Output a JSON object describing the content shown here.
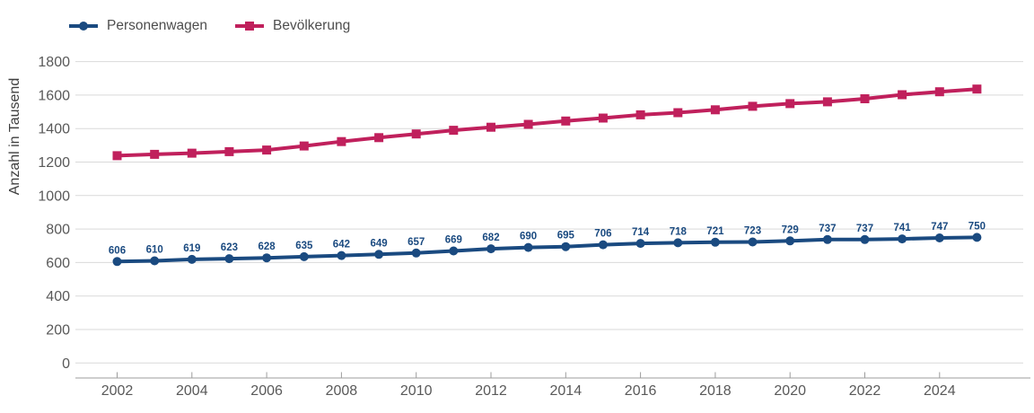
{
  "chart_data": {
    "type": "line",
    "title": "",
    "ylabel": "Anzahl in Tausend",
    "xlabel": "",
    "years": [
      2002,
      2003,
      2004,
      2005,
      2006,
      2007,
      2008,
      2009,
      2010,
      2011,
      2012,
      2013,
      2014,
      2015,
      2016,
      2017,
      2018,
      2019,
      2020,
      2021,
      2022,
      2023,
      2024,
      2025
    ],
    "x_tick_years": [
      2002,
      2004,
      2006,
      2008,
      2010,
      2012,
      2014,
      2016,
      2018,
      2020,
      2022,
      2024
    ],
    "y_ticks": [
      0,
      200,
      400,
      600,
      800,
      1000,
      1200,
      1400,
      1600,
      1800
    ],
    "ylim": [
      0,
      1800
    ],
    "grid": "horizontal",
    "legend_position": "top-left",
    "series": [
      {
        "name": "Personenwagen",
        "color": "#1a4a80",
        "marker": "circle",
        "show_data_labels": true,
        "values": [
          606,
          610,
          619,
          623,
          628,
          635,
          642,
          649,
          657,
          669,
          682,
          690,
          695,
          706,
          714,
          718,
          721,
          723,
          729,
          737,
          737,
          741,
          747,
          750
        ]
      },
      {
        "name": "Bevölkerung",
        "color": "#c0205c",
        "marker": "square",
        "show_data_labels": false,
        "values": [
          1238,
          1246,
          1253,
          1262,
          1272,
          1296,
          1322,
          1346,
          1368,
          1390,
          1408,
          1425,
          1445,
          1463,
          1482,
          1495,
          1512,
          1533,
          1549,
          1560,
          1578,
          1602,
          1620,
          1636
        ]
      }
    ]
  },
  "legend": {
    "items": [
      {
        "label": "Personenwagen"
      },
      {
        "label": "Bevölkerung"
      }
    ]
  },
  "colors": {
    "personenwagen": "#1a4a80",
    "bevoelkerung": "#c0205c",
    "grid": "#d9d9d9",
    "axis": "#9c9c9c",
    "tick_text": "#595959",
    "legend_text": "#4d4d4d",
    "ylabel_text": "#404040",
    "background": "#ffffff"
  }
}
